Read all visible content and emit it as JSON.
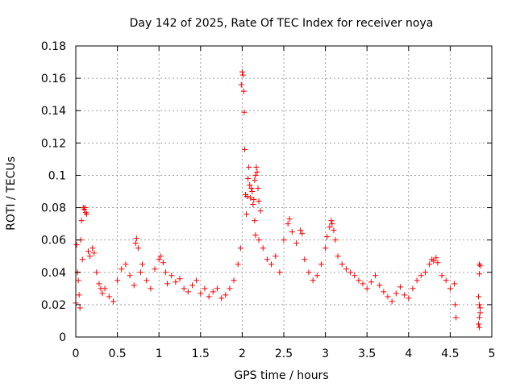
{
  "chart_data": {
    "type": "scatter",
    "title": "Day 142 of 2025, Rate Of TEC Index for receiver noya",
    "xlabel": "GPS time / hours",
    "ylabel": "ROTI / TECUs",
    "xlim": [
      0,
      5
    ],
    "ylim": [
      0,
      0.18
    ],
    "xticks": [
      0,
      0.5,
      1,
      1.5,
      2,
      2.5,
      3,
      3.5,
      4,
      4.5,
      5
    ],
    "yticks": [
      0,
      0.02,
      0.04,
      0.06,
      0.08,
      0.1,
      0.12,
      0.14,
      0.16,
      0.18
    ],
    "xtick_labels": [
      "0",
      "0.5",
      "1",
      "1.5",
      "2",
      "2.5",
      "3",
      "3.5",
      "4",
      "4.5",
      "5"
    ],
    "ytick_labels": [
      "0",
      "0.02",
      "0.04",
      "0.06",
      "0.08",
      "0.1",
      "0.12",
      "0.14",
      "0.16",
      "0.18"
    ],
    "grid": true,
    "marker": "+",
    "color": "#ff0000",
    "series": [
      {
        "name": "ROTI",
        "points": [
          [
            0.0,
            0.021
          ],
          [
            0.01,
            0.057
          ],
          [
            0.02,
            0.04
          ],
          [
            0.03,
            0.035
          ],
          [
            0.04,
            0.026
          ],
          [
            0.05,
            0.018
          ],
          [
            0.06,
            0.06
          ],
          [
            0.07,
            0.072
          ],
          [
            0.08,
            0.048
          ],
          [
            0.09,
            0.08
          ],
          [
            0.1,
            0.079
          ],
          [
            0.11,
            0.08
          ],
          [
            0.12,
            0.077
          ],
          [
            0.13,
            0.076
          ],
          [
            0.15,
            0.053
          ],
          [
            0.17,
            0.05
          ],
          [
            0.2,
            0.055
          ],
          [
            0.22,
            0.052
          ],
          [
            0.25,
            0.04
          ],
          [
            0.28,
            0.033
          ],
          [
            0.3,
            0.03
          ],
          [
            0.32,
            0.027
          ],
          [
            0.35,
            0.03
          ],
          [
            0.4,
            0.025
          ],
          [
            0.45,
            0.022
          ],
          [
            0.5,
            0.035
          ],
          [
            0.55,
            0.042
          ],
          [
            0.6,
            0.045
          ],
          [
            0.65,
            0.038
          ],
          [
            0.7,
            0.032
          ],
          [
            0.72,
            0.058
          ],
          [
            0.73,
            0.061
          ],
          [
            0.75,
            0.055
          ],
          [
            0.78,
            0.04
          ],
          [
            0.8,
            0.045
          ],
          [
            0.85,
            0.035
          ],
          [
            0.9,
            0.03
          ],
          [
            0.95,
            0.042
          ],
          [
            1.0,
            0.048
          ],
          [
            1.02,
            0.05
          ],
          [
            1.05,
            0.046
          ],
          [
            1.08,
            0.04
          ],
          [
            1.1,
            0.033
          ],
          [
            1.15,
            0.038
          ],
          [
            1.2,
            0.034
          ],
          [
            1.25,
            0.036
          ],
          [
            1.3,
            0.03
          ],
          [
            1.35,
            0.028
          ],
          [
            1.4,
            0.032
          ],
          [
            1.45,
            0.035
          ],
          [
            1.5,
            0.027
          ],
          [
            1.55,
            0.03
          ],
          [
            1.6,
            0.025
          ],
          [
            1.65,
            0.028
          ],
          [
            1.7,
            0.03
          ],
          [
            1.75,
            0.024
          ],
          [
            1.8,
            0.026
          ],
          [
            1.85,
            0.03
          ],
          [
            1.9,
            0.035
          ],
          [
            1.95,
            0.045
          ],
          [
            1.98,
            0.055
          ],
          [
            1.99,
            0.156
          ],
          [
            2.0,
            0.164
          ],
          [
            2.01,
            0.162
          ],
          [
            2.02,
            0.152
          ],
          [
            2.025,
            0.139
          ],
          [
            2.03,
            0.116
          ],
          [
            2.04,
            0.088
          ],
          [
            2.05,
            0.076
          ],
          [
            2.06,
            0.087
          ],
          [
            2.07,
            0.098
          ],
          [
            2.08,
            0.105
          ],
          [
            2.09,
            0.094
          ],
          [
            2.1,
            0.086
          ],
          [
            2.11,
            0.092
          ],
          [
            2.12,
            0.09
          ],
          [
            2.13,
            0.082
          ],
          [
            2.14,
            0.085
          ],
          [
            2.15,
            0.097
          ],
          [
            2.16,
            0.1
          ],
          [
            2.17,
            0.105
          ],
          [
            2.18,
            0.102
          ],
          [
            2.19,
            0.092
          ],
          [
            2.2,
            0.084
          ],
          [
            2.22,
            0.078
          ],
          [
            2.15,
            0.072
          ],
          [
            2.16,
            0.063
          ],
          [
            2.2,
            0.06
          ],
          [
            2.25,
            0.055
          ],
          [
            2.3,
            0.048
          ],
          [
            2.35,
            0.045
          ],
          [
            2.4,
            0.05
          ],
          [
            2.45,
            0.04
          ],
          [
            2.5,
            0.06
          ],
          [
            2.55,
            0.07
          ],
          [
            2.57,
            0.073
          ],
          [
            2.6,
            0.065
          ],
          [
            2.65,
            0.058
          ],
          [
            2.7,
            0.066
          ],
          [
            2.72,
            0.064
          ],
          [
            2.75,
            0.048
          ],
          [
            2.8,
            0.04
          ],
          [
            2.85,
            0.035
          ],
          [
            2.9,
            0.038
          ],
          [
            2.95,
            0.045
          ],
          [
            3.0,
            0.055
          ],
          [
            3.02,
            0.062
          ],
          [
            3.05,
            0.068
          ],
          [
            3.07,
            0.072
          ],
          [
            3.08,
            0.07
          ],
          [
            3.1,
            0.066
          ],
          [
            3.12,
            0.06
          ],
          [
            3.15,
            0.05
          ],
          [
            3.2,
            0.045
          ],
          [
            3.25,
            0.042
          ],
          [
            3.3,
            0.04
          ],
          [
            3.35,
            0.038
          ],
          [
            3.4,
            0.035
          ],
          [
            3.45,
            0.033
          ],
          [
            3.5,
            0.03
          ],
          [
            3.55,
            0.034
          ],
          [
            3.6,
            0.038
          ],
          [
            3.65,
            0.032
          ],
          [
            3.7,
            0.028
          ],
          [
            3.75,
            0.025
          ],
          [
            3.8,
            0.022
          ],
          [
            3.85,
            0.027
          ],
          [
            3.9,
            0.031
          ],
          [
            3.95,
            0.026
          ],
          [
            4.0,
            0.024
          ],
          [
            4.05,
            0.03
          ],
          [
            4.1,
            0.035
          ],
          [
            4.15,
            0.038
          ],
          [
            4.2,
            0.04
          ],
          [
            4.25,
            0.045
          ],
          [
            4.28,
            0.048
          ],
          [
            4.3,
            0.047
          ],
          [
            4.33,
            0.049
          ],
          [
            4.35,
            0.046
          ],
          [
            4.4,
            0.038
          ],
          [
            4.45,
            0.035
          ],
          [
            4.5,
            0.03
          ],
          [
            4.55,
            0.033
          ],
          [
            4.56,
            0.02
          ],
          [
            4.57,
            0.012
          ],
          [
            4.85,
            0.045
          ],
          [
            4.86,
            0.044
          ],
          [
            4.85,
            0.039
          ],
          [
            4.84,
            0.025
          ],
          [
            4.85,
            0.02
          ],
          [
            4.86,
            0.015
          ],
          [
            4.85,
            0.012
          ],
          [
            4.84,
            0.008
          ],
          [
            4.85,
            0.006
          ],
          [
            4.86,
            0.018
          ]
        ]
      }
    ]
  }
}
